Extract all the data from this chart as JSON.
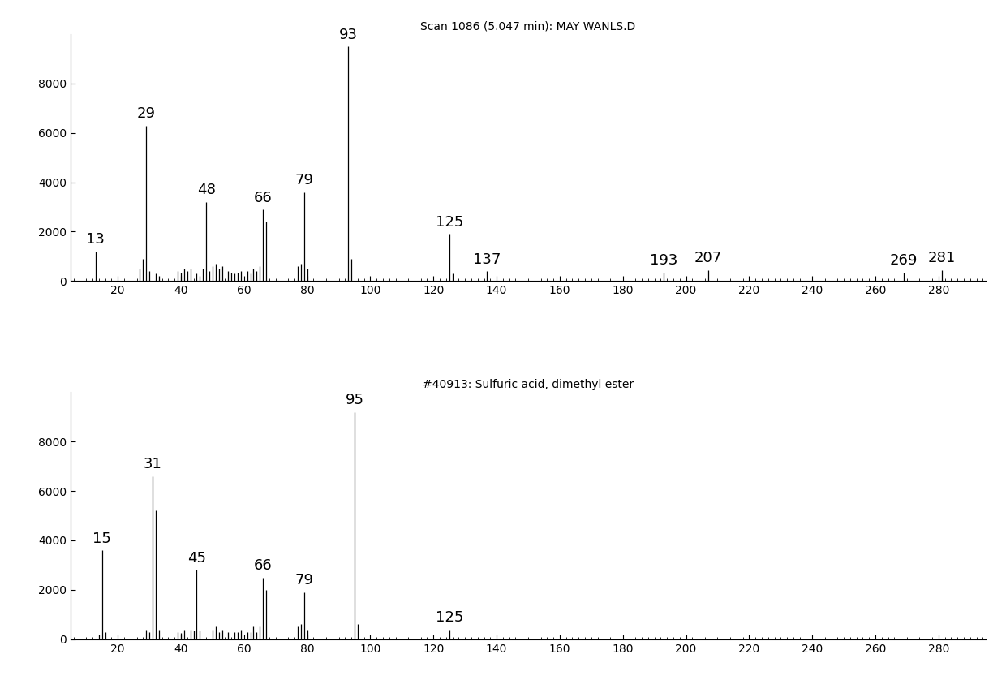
{
  "title1": "Scan 1086 (5.047 min): MAY WANLS.D",
  "title2": "#40913: Sulfuric acid, dimethyl ester",
  "background_color": "#ffffff",
  "spectrum1": {
    "peaks": [
      [
        13,
        1200
      ],
      [
        27,
        500
      ],
      [
        28,
        900
      ],
      [
        29,
        6300
      ],
      [
        30,
        400
      ],
      [
        32,
        300
      ],
      [
        33,
        200
      ],
      [
        39,
        400
      ],
      [
        40,
        350
      ],
      [
        41,
        500
      ],
      [
        42,
        400
      ],
      [
        43,
        500
      ],
      [
        45,
        300
      ],
      [
        46,
        200
      ],
      [
        47,
        500
      ],
      [
        48,
        3200
      ],
      [
        49,
        400
      ],
      [
        50,
        600
      ],
      [
        51,
        700
      ],
      [
        52,
        500
      ],
      [
        53,
        600
      ],
      [
        55,
        400
      ],
      [
        56,
        350
      ],
      [
        57,
        300
      ],
      [
        58,
        350
      ],
      [
        59,
        400
      ],
      [
        61,
        400
      ],
      [
        62,
        300
      ],
      [
        63,
        500
      ],
      [
        64,
        400
      ],
      [
        65,
        600
      ],
      [
        66,
        2900
      ],
      [
        67,
        2400
      ],
      [
        77,
        600
      ],
      [
        78,
        700
      ],
      [
        79,
        3600
      ],
      [
        80,
        500
      ],
      [
        93,
        9500
      ],
      [
        94,
        900
      ],
      [
        125,
        1900
      ],
      [
        126,
        300
      ],
      [
        137,
        400
      ],
      [
        193,
        350
      ],
      [
        207,
        450
      ],
      [
        269,
        350
      ],
      [
        281,
        450
      ]
    ]
  },
  "spectrum2": {
    "peaks": [
      [
        14,
        200
      ],
      [
        15,
        3600
      ],
      [
        16,
        300
      ],
      [
        29,
        400
      ],
      [
        30,
        300
      ],
      [
        31,
        6600
      ],
      [
        32,
        5200
      ],
      [
        33,
        400
      ],
      [
        39,
        300
      ],
      [
        40,
        250
      ],
      [
        41,
        400
      ],
      [
        43,
        400
      ],
      [
        44,
        350
      ],
      [
        45,
        2800
      ],
      [
        46,
        350
      ],
      [
        50,
        400
      ],
      [
        51,
        500
      ],
      [
        52,
        300
      ],
      [
        53,
        400
      ],
      [
        55,
        300
      ],
      [
        57,
        300
      ],
      [
        58,
        300
      ],
      [
        59,
        400
      ],
      [
        61,
        300
      ],
      [
        62,
        300
      ],
      [
        63,
        500
      ],
      [
        64,
        300
      ],
      [
        65,
        500
      ],
      [
        66,
        2500
      ],
      [
        67,
        2000
      ],
      [
        77,
        500
      ],
      [
        78,
        600
      ],
      [
        79,
        1900
      ],
      [
        80,
        400
      ],
      [
        95,
        9200
      ],
      [
        96,
        600
      ],
      [
        125,
        400
      ]
    ]
  },
  "xlim": [
    5,
    295
  ],
  "ylim": [
    0,
    10000
  ],
  "xticks_major": [
    20,
    40,
    60,
    80,
    100,
    120,
    140,
    160,
    180,
    200,
    220,
    240,
    260,
    280
  ],
  "yticks": [
    0,
    2000,
    4000,
    6000,
    8000
  ],
  "peak_labels1": {
    "13": [
      13,
      1200,
      "left"
    ],
    "29": [
      29,
      6300,
      "center"
    ],
    "48": [
      48,
      3200,
      "center"
    ],
    "66": [
      66,
      2900,
      "center"
    ],
    "79": [
      79,
      3600,
      "center"
    ],
    "93": [
      93,
      9500,
      "center"
    ],
    "125": [
      125,
      1900,
      "center"
    ],
    "137": [
      137,
      400,
      "center"
    ],
    "193": [
      193,
      350,
      "center"
    ],
    "207": [
      207,
      450,
      "center"
    ],
    "269": [
      269,
      350,
      "center"
    ],
    "281": [
      281,
      450,
      "center"
    ]
  },
  "peak_labels2": {
    "15": [
      15,
      3600,
      "center"
    ],
    "31": [
      31,
      6600,
      "center"
    ],
    "45": [
      45,
      2800,
      "center"
    ],
    "66": [
      66,
      2500,
      "center"
    ],
    "79": [
      79,
      1900,
      "center"
    ],
    "95": [
      95,
      9200,
      "center"
    ],
    "125": [
      125,
      400,
      "center"
    ]
  },
  "line_color": "#000000",
  "label_fontsize": 13,
  "title_fontsize": 10,
  "tick_fontsize": 10
}
